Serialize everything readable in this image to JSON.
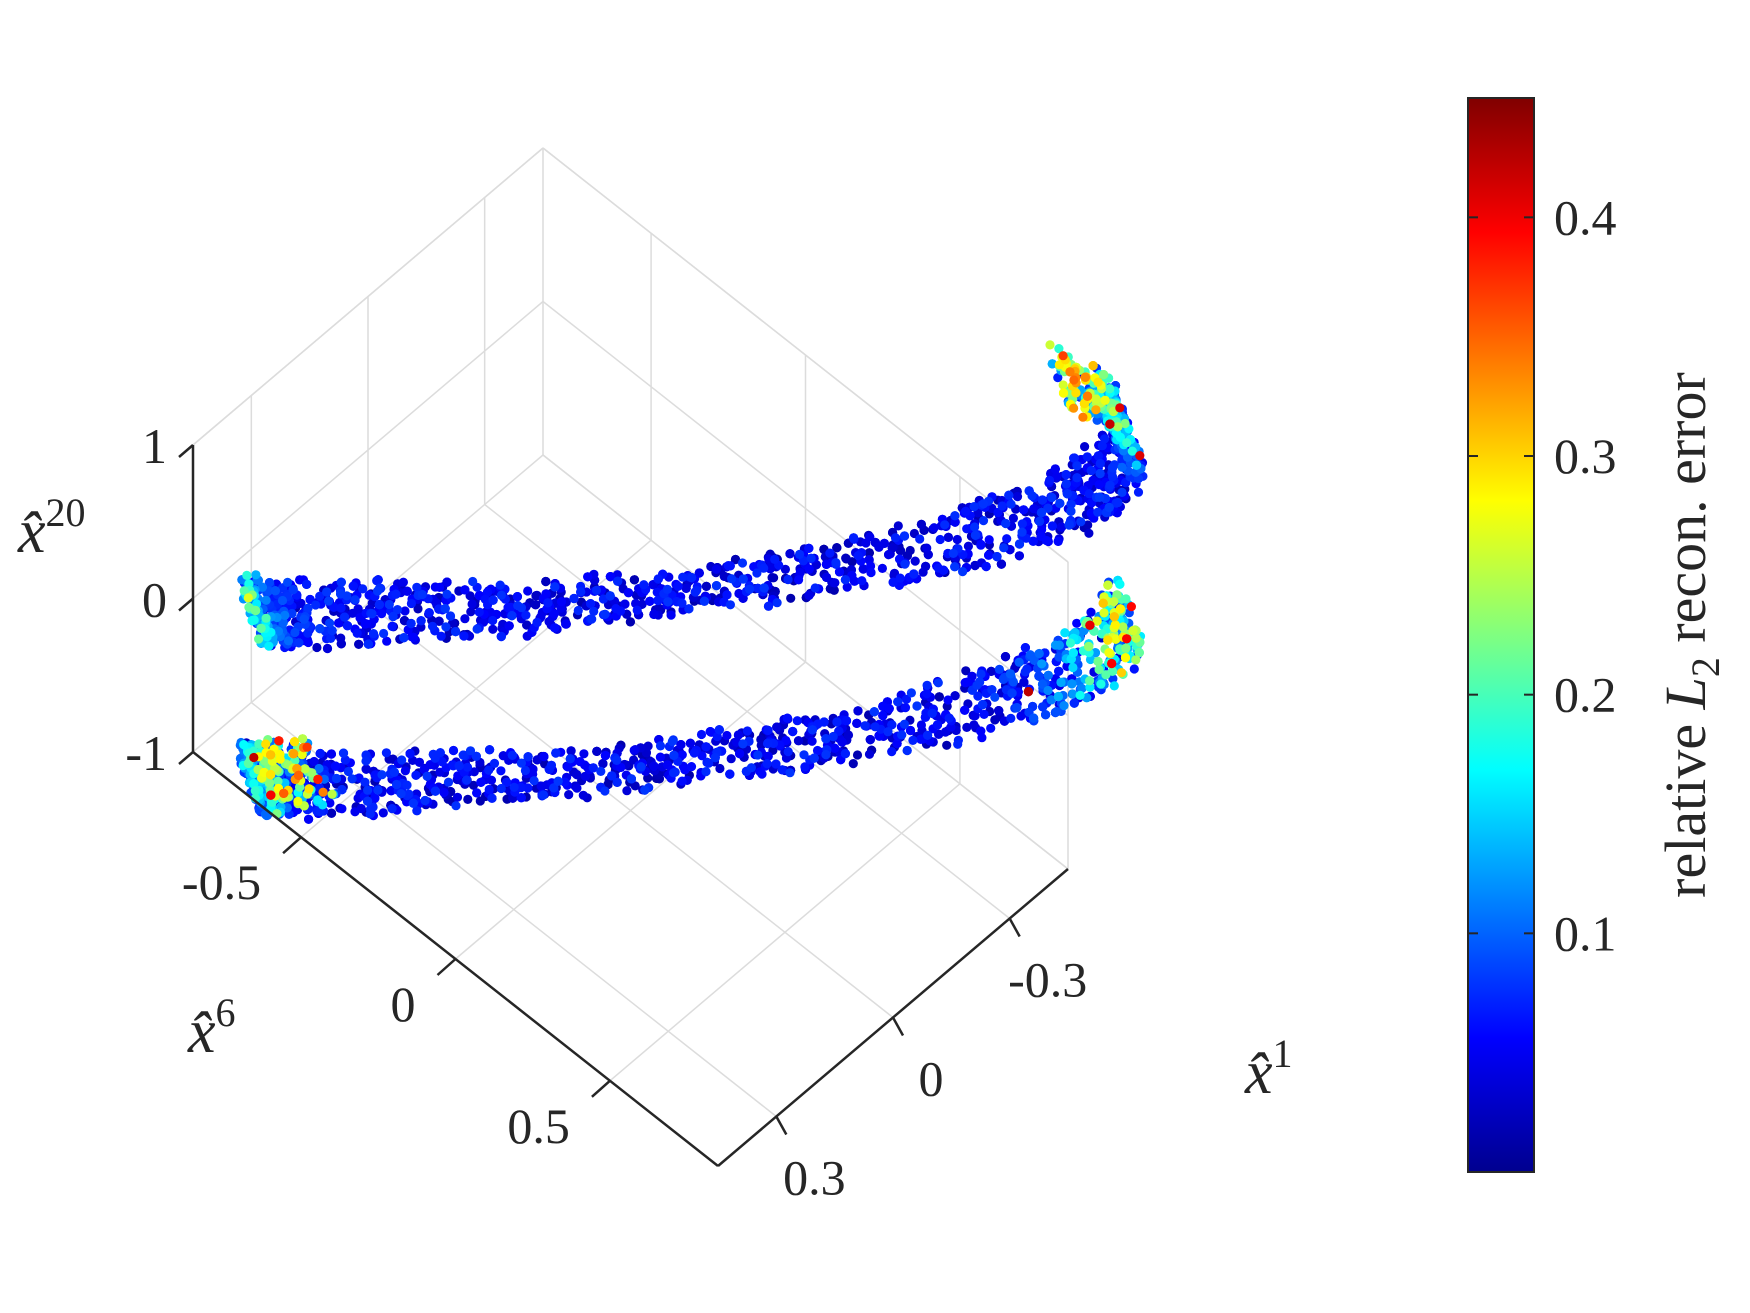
{
  "chart_data": {
    "type": "scatter",
    "projection": "3d",
    "series_shape": "two-turn helical ribbon",
    "x_axis": {
      "label": "x̂",
      "superscript": "1",
      "ticks": [
        {
          "value": -0.3,
          "label": "-0.3"
        },
        {
          "value": 0,
          "label": "0"
        },
        {
          "value": 0.3,
          "label": "0.3"
        }
      ],
      "lim": [
        -0.45,
        0.45
      ]
    },
    "y_axis": {
      "label": "x̂",
      "superscript": "6",
      "ticks": [
        {
          "value": -0.5,
          "label": "-0.5"
        },
        {
          "value": 0,
          "label": "0"
        },
        {
          "value": 0.5,
          "label": "0.5"
        }
      ],
      "lim": [
        -0.85,
        0.85
      ]
    },
    "z_axis": {
      "label": "x̂",
      "superscript": "20",
      "ticks": [
        {
          "value": -1,
          "label": "-1"
        },
        {
          "value": 0,
          "label": "0"
        },
        {
          "value": 1,
          "label": "1"
        }
      ],
      "lim": [
        -1,
        1
      ]
    },
    "grid": true,
    "colorbar": {
      "label_prefix": "relative ",
      "label_symbol": "L",
      "label_subscript": "2",
      "label_suffix": " recon. error",
      "colormap": "jet",
      "range": [
        0,
        0.45
      ],
      "ticks": [
        {
          "value": 0.1,
          "label": "0.1"
        },
        {
          "value": 0.2,
          "label": "0.2"
        },
        {
          "value": 0.3,
          "label": "0.3"
        },
        {
          "value": 0.4,
          "label": "0.4"
        }
      ]
    }
  }
}
